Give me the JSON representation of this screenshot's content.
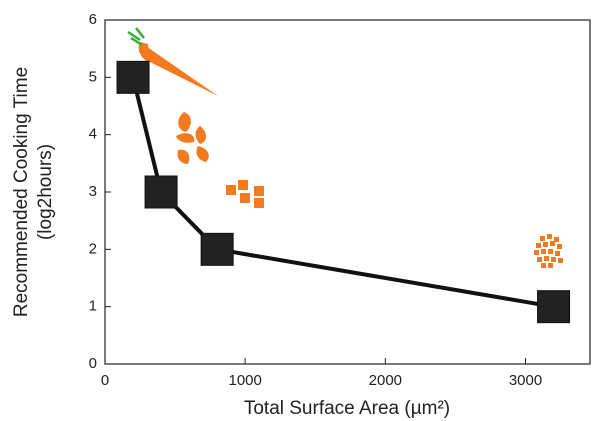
{
  "chart_data": {
    "type": "line",
    "xlabel": "Total Surface Area (µm²)",
    "ylabel": [
      "Recommended Cooking Time",
      "(log2hours)"
    ],
    "x": [
      200,
      400,
      800,
      3200
    ],
    "series": [
      {
        "values": [
          5,
          3,
          2,
          1
        ],
        "color": "#111111",
        "marker": "square"
      }
    ],
    "xlim": [
      0,
      3460
    ],
    "xticks": [
      0,
      1000,
      2000,
      3000
    ],
    "ylim": [
      0,
      6
    ],
    "yticks": [
      0,
      1,
      2,
      3,
      4,
      5,
      6
    ],
    "grid": false
  }
}
